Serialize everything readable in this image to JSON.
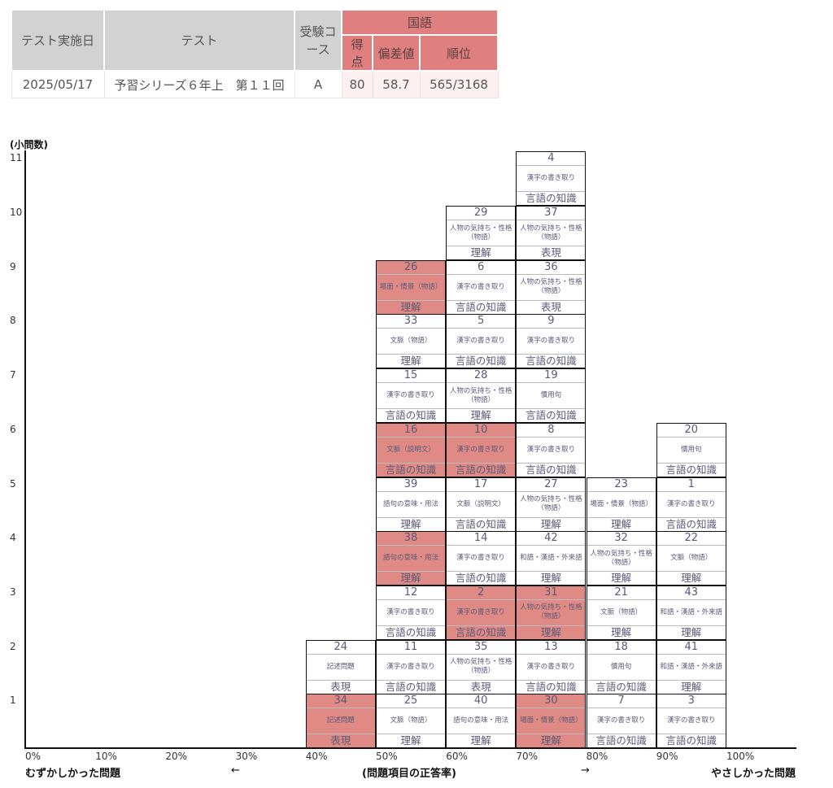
{
  "table": {
    "headers": {
      "date": "テスト実施日",
      "test": "テスト",
      "course": "受験コース",
      "subject": "国語",
      "score": "得点",
      "deviation": "偏差値",
      "rank": "順位"
    },
    "row": {
      "date": "2025/05/17",
      "test": "予習シリーズ６年上　第１１回",
      "course": "A",
      "score": "80",
      "deviation": "58.7",
      "rank": "565/3168"
    }
  },
  "chart_data": {
    "type": "table",
    "ylabel": "(小問数)",
    "xlabel": "(問題項目の正答率)",
    "left_label": "むずかしかった問題",
    "right_label": "やさしかった問題",
    "left_arrow": "←",
    "right_arrow": "→",
    "y_ticks": [
      "1",
      "2",
      "3",
      "4",
      "5",
      "6",
      "7",
      "8",
      "9",
      "10",
      "11"
    ],
    "x_ticks": [
      "0%",
      "10%",
      "20%",
      "30%",
      "40%",
      "50%",
      "60%",
      "70%",
      "80%",
      "90%",
      "100%"
    ],
    "highlight_color": "#e08a85",
    "columns": [
      {
        "bin": 40,
        "items": [
          {
            "no": "34",
            "topic": "記述問題",
            "cat": "表現",
            "hl": true
          },
          {
            "no": "24",
            "topic": "記述問題",
            "cat": "表現",
            "hl": false
          }
        ]
      },
      {
        "bin": 50,
        "items": [
          {
            "no": "25",
            "topic": "文脈（物語）",
            "cat": "理解",
            "hl": false
          },
          {
            "no": "11",
            "topic": "漢字の書き取り",
            "cat": "言語の知識",
            "hl": false
          },
          {
            "no": "12",
            "topic": "漢字の書き取り",
            "cat": "言語の知識",
            "hl": false
          },
          {
            "no": "38",
            "topic": "語句の意味・用法",
            "cat": "理解",
            "hl": true
          },
          {
            "no": "39",
            "topic": "語句の意味・用法",
            "cat": "理解",
            "hl": false
          },
          {
            "no": "16",
            "topic": "文脈（説明文）",
            "cat": "言語の知識",
            "hl": true
          },
          {
            "no": "15",
            "topic": "漢字の書き取り",
            "cat": "言語の知識",
            "hl": false
          },
          {
            "no": "33",
            "topic": "文脈（物語）",
            "cat": "理解",
            "hl": false
          },
          {
            "no": "26",
            "topic": "場面・情景（物語）",
            "cat": "理解",
            "hl": true
          }
        ]
      },
      {
        "bin": 60,
        "items": [
          {
            "no": "40",
            "topic": "語句の意味・用法",
            "cat": "理解",
            "hl": false
          },
          {
            "no": "35",
            "topic": "人物の気持ち・性格（物語）",
            "cat": "表現",
            "hl": false
          },
          {
            "no": "2",
            "topic": "漢字の書き取り",
            "cat": "言語の知識",
            "hl": true
          },
          {
            "no": "14",
            "topic": "漢字の書き取り",
            "cat": "言語の知識",
            "hl": false
          },
          {
            "no": "17",
            "topic": "文脈（説明文）",
            "cat": "言語の知識",
            "hl": false
          },
          {
            "no": "10",
            "topic": "漢字の書き取り",
            "cat": "言語の知識",
            "hl": true
          },
          {
            "no": "28",
            "topic": "人物の気持ち・性格（物語）",
            "cat": "理解",
            "hl": false
          },
          {
            "no": "5",
            "topic": "漢字の書き取り",
            "cat": "言語の知識",
            "hl": false
          },
          {
            "no": "6",
            "topic": "漢字の書き取り",
            "cat": "言語の知識",
            "hl": false
          },
          {
            "no": "29",
            "topic": "人物の気持ち・性格（物語）",
            "cat": "理解",
            "hl": false
          }
        ]
      },
      {
        "bin": 70,
        "items": [
          {
            "no": "30",
            "topic": "場面・情景（物語）",
            "cat": "理解",
            "hl": true
          },
          {
            "no": "13",
            "topic": "漢字の書き取り",
            "cat": "言語の知識",
            "hl": false
          },
          {
            "no": "31",
            "topic": "人物の気持ち・性格（物語）",
            "cat": "理解",
            "hl": true
          },
          {
            "no": "42",
            "topic": "和語・漢語・外来語",
            "cat": "理解",
            "hl": false
          },
          {
            "no": "27",
            "topic": "人物の気持ち・性格（物語）",
            "cat": "理解",
            "hl": false
          },
          {
            "no": "8",
            "topic": "漢字の書き取り",
            "cat": "言語の知識",
            "hl": false
          },
          {
            "no": "19",
            "topic": "慣用句",
            "cat": "言語の知識",
            "hl": false
          },
          {
            "no": "9",
            "topic": "漢字の書き取り",
            "cat": "言語の知識",
            "hl": false
          },
          {
            "no": "36",
            "topic": "人物の気持ち・性格（物語）",
            "cat": "表現",
            "hl": false
          },
          {
            "no": "37",
            "topic": "人物の気持ち・性格（物語）",
            "cat": "表現",
            "hl": false
          },
          {
            "no": "4",
            "topic": "漢字の書き取り",
            "cat": "言語の知識",
            "hl": false
          }
        ]
      },
      {
        "bin": 80,
        "items": [
          {
            "no": "7",
            "topic": "漢字の書き取り",
            "cat": "言語の知識",
            "hl": false
          },
          {
            "no": "18",
            "topic": "慣用句",
            "cat": "言語の知識",
            "hl": false
          },
          {
            "no": "21",
            "topic": "文脈（物語）",
            "cat": "理解",
            "hl": false
          },
          {
            "no": "32",
            "topic": "人物の気持ち・性格（物語）",
            "cat": "理解",
            "hl": false
          },
          {
            "no": "23",
            "topic": "場面・情景（物語）",
            "cat": "理解",
            "hl": false
          }
        ]
      },
      {
        "bin": 90,
        "items": [
          {
            "no": "3",
            "topic": "漢字の書き取り",
            "cat": "言語の知識",
            "hl": false
          },
          {
            "no": "41",
            "topic": "和語・漢語・外来語",
            "cat": "理解",
            "hl": false
          },
          {
            "no": "43",
            "topic": "和語・漢語・外来語",
            "cat": "理解",
            "hl": false
          },
          {
            "no": "22",
            "topic": "文脈（物語）",
            "cat": "理解",
            "hl": false
          },
          {
            "no": "1",
            "topic": "漢字の書き取り",
            "cat": "言語の知識",
            "hl": false
          },
          {
            "no": "20",
            "topic": "慣用句",
            "cat": "言語の知識",
            "hl": false
          }
        ]
      }
    ]
  }
}
